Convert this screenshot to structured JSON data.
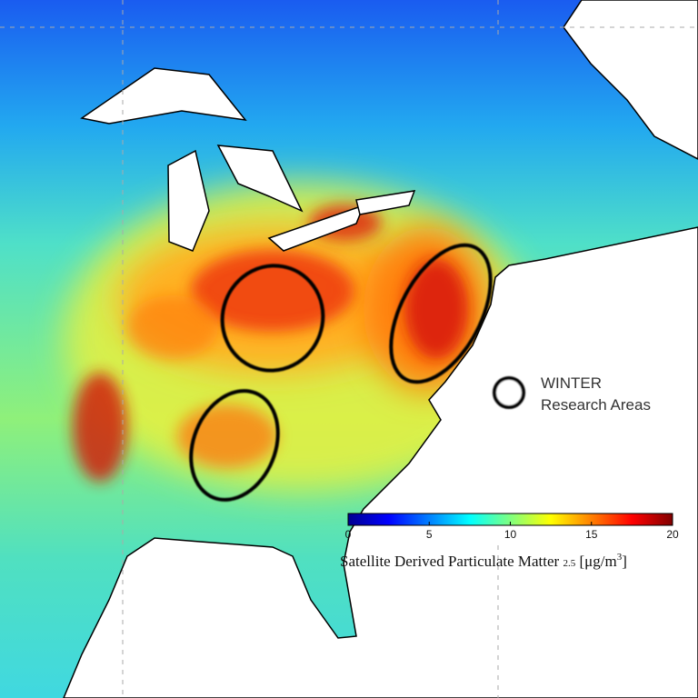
{
  "legend": {
    "title": "WINTER",
    "subtitle": "Research Areas"
  },
  "colorbar": {
    "ticks": [
      0,
      5,
      10,
      15,
      20
    ],
    "label": {
      "text": "Satellite Derived Particulate Matter",
      "subscript": "2.5",
      "unit": "[μg/m",
      "unit_power": "3",
      "unit_close": "]"
    }
  }
}
